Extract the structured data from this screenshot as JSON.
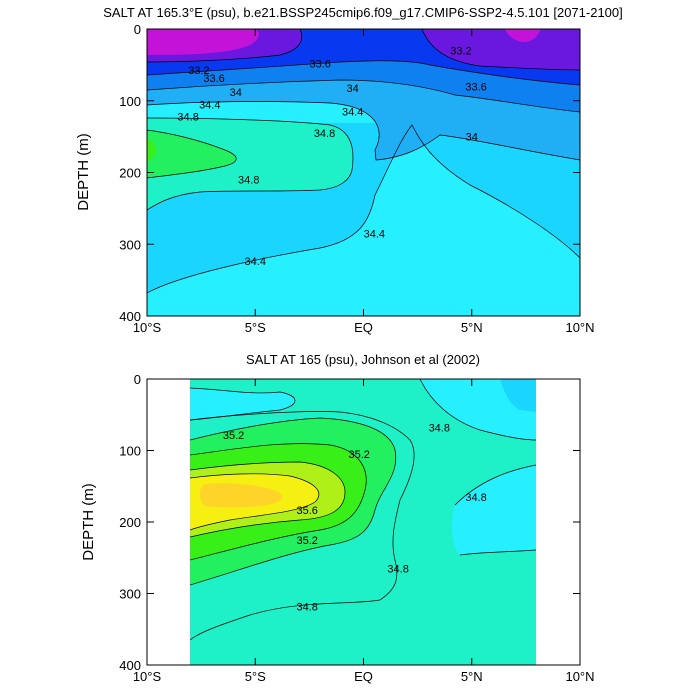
{
  "chart_data": [
    {
      "type": "heatmap",
      "title": "SALT AT 165.3°E (psu), b.e21.BSSP245cmip6.f09_g17.CMIP6-SSP2-4.5.101 [2071-2100]",
      "ylabel": "DEPTH (m)",
      "xlabel": "",
      "x_ticks": [
        "10°S",
        "5°S",
        "EQ",
        "5°N",
        "10°N"
      ],
      "x_tick_values": [
        -10,
        -5,
        0,
        5,
        10
      ],
      "y_ticks": [
        "0",
        "100",
        "200",
        "300",
        "400"
      ],
      "y_tick_values": [
        0,
        100,
        200,
        300,
        400
      ],
      "xlim": [
        -10,
        10
      ],
      "ylim": [
        400,
        0
      ],
      "contour_labels": [
        {
          "text": "33.6",
          "x": -6.9,
          "y": 68
        },
        {
          "text": "33.2",
          "x": -7.6,
          "y": 57
        },
        {
          "text": "34",
          "x": -5.9,
          "y": 88
        },
        {
          "text": "34.4",
          "x": -7.1,
          "y": 105
        },
        {
          "text": "34.8",
          "x": -8.1,
          "y": 122
        },
        {
          "text": "33.6",
          "x": -2.0,
          "y": 48
        },
        {
          "text": "34",
          "x": -0.5,
          "y": 82
        },
        {
          "text": "34.4",
          "x": -0.5,
          "y": 115
        },
        {
          "text": "34.8",
          "x": -1.8,
          "y": 145
        },
        {
          "text": "34.8",
          "x": -5.3,
          "y": 210
        },
        {
          "text": "34.4",
          "x": 0.5,
          "y": 285
        },
        {
          "text": "34.4",
          "x": -5.0,
          "y": 323
        },
        {
          "text": "33.2",
          "x": 4.5,
          "y": 30
        },
        {
          "text": "33.6",
          "x": 5.2,
          "y": 80
        },
        {
          "text": "34",
          "x": 5.0,
          "y": 150
        }
      ]
    },
    {
      "type": "heatmap",
      "title": "SALT AT 165 (psu), Johnson et al (2002)",
      "ylabel": "DEPTH (m)",
      "xlabel": "",
      "x_ticks": [
        "10°S",
        "5°S",
        "EQ",
        "5°N",
        "10°N"
      ],
      "x_tick_values": [
        -10,
        -5,
        0,
        5,
        10
      ],
      "y_ticks": [
        "0",
        "100",
        "200",
        "300",
        "400"
      ],
      "y_tick_values": [
        0,
        100,
        200,
        300,
        400
      ],
      "xlim": [
        -10,
        10
      ],
      "ylim": [
        400,
        0
      ],
      "data_extent_x": [
        -8,
        8
      ],
      "contour_labels": [
        {
          "text": "35.2",
          "x": -6.0,
          "y": 78
        },
        {
          "text": "35.2",
          "x": -0.2,
          "y": 105
        },
        {
          "text": "34.8",
          "x": 3.5,
          "y": 68
        },
        {
          "text": "35.6",
          "x": -2.6,
          "y": 183
        },
        {
          "text": "34.8",
          "x": 5.2,
          "y": 165
        },
        {
          "text": "35.2",
          "x": -2.6,
          "y": 225
        },
        {
          "text": "34.8",
          "x": 1.6,
          "y": 265
        },
        {
          "text": "34.8",
          "x": -2.6,
          "y": 318
        }
      ]
    }
  ],
  "colors": {
    "magenta": "#c413d8",
    "purple": "#6a18e0",
    "blue": "#0838f0",
    "mid_blue": "#0f80f0",
    "light_blue": "#20aef4",
    "cyan": "#1ad6ff",
    "aqua": "#26f0ff",
    "teal_green": "#1ef0c8",
    "green": "#22f05e",
    "bright_green": "#38f018",
    "yellow_green": "#aef018",
    "yellow": "#f6f012",
    "gold": "#ffd428"
  }
}
